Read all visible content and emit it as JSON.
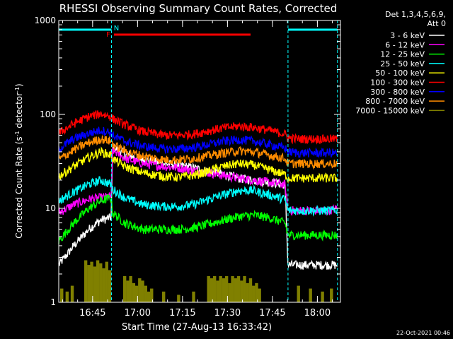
{
  "chart_data": {
    "type": "line",
    "title": "RHESSI Observing Summary Count Rates, Corrected",
    "ylabel_main": "Corrected Count Rate (s",
    "ylabel_sup1": "-1",
    "ylabel_mid": " detector",
    "ylabel_sup2": "-1",
    "ylabel_end": ")",
    "xlabel": "Start Time (27-Aug-13 16:33:42)",
    "y_scale": "log",
    "ylim": [
      1,
      1000
    ],
    "xlim_minutes_after_start": [
      0,
      94
    ],
    "x_ticks": [
      {
        "label": "16:45",
        "minutes": 11.3
      },
      {
        "label": "17:00",
        "minutes": 26.3
      },
      {
        "label": "17:15",
        "minutes": 41.3
      },
      {
        "label": "17:30",
        "minutes": 56.3
      },
      {
        "label": "17:45",
        "minutes": 71.3
      },
      {
        "label": "18:00",
        "minutes": 86.3
      }
    ],
    "y_ticks": [
      {
        "label": "1",
        "value": 1
      },
      {
        "label": "10",
        "value": 10
      },
      {
        "label": "100",
        "value": 100
      },
      {
        "label": "1000",
        "value": 1000
      }
    ],
    "legend_placement": "right",
    "legend_title_1": "Det 1,3,4,5,6,9,",
    "legend_title_2": "Att 0",
    "flags": [
      {
        "label": "N",
        "color": "#00ffff",
        "segments": [
          [
            -1,
            17.6
          ],
          [
            76.5,
            93
          ]
        ]
      },
      {
        "label": "F",
        "color": "#ff0000",
        "segments": [
          [
            18.4,
            64
          ]
        ]
      }
    ],
    "night_boundaries_minutes": [
      17.6,
      76.5,
      93
    ],
    "series": [
      {
        "name": "3 - 6 keV",
        "color": "#ffffff",
        "x": [
          0,
          5,
          10,
          14,
          17.5,
          18,
          22,
          28,
          35,
          40,
          45,
          50,
          55,
          60,
          65,
          70,
          75.5,
          76.5,
          80,
          85,
          90,
          93
        ],
        "y": [
          2.5,
          4,
          6,
          7.5,
          8,
          45,
          38,
          33,
          30,
          29,
          27,
          25,
          23,
          21,
          20,
          19,
          18,
          2.5,
          2.5,
          2.5,
          2.5,
          2.5
        ]
      },
      {
        "name": "6 - 12 keV",
        "color": "#ff00ff",
        "x": [
          0,
          5,
          10,
          14,
          17.5,
          18,
          22,
          28,
          35,
          40,
          45,
          50,
          55,
          60,
          65,
          70,
          75.5,
          76.5,
          80,
          85,
          90,
          93
        ],
        "y": [
          9,
          11,
          12.5,
          13,
          13.5,
          42,
          34,
          30,
          28,
          27,
          25.5,
          24,
          22.5,
          21,
          20,
          19,
          18,
          9.5,
          9.5,
          9.5,
          9.5,
          10
        ]
      },
      {
        "name": "12 - 25 keV",
        "color": "#00ff00",
        "x": [
          0,
          5,
          10,
          14,
          17.5,
          18,
          22,
          28,
          35,
          40,
          45,
          50,
          55,
          60,
          65,
          70,
          75.5,
          76.5,
          80,
          85,
          90,
          93
        ],
        "y": [
          4.5,
          7,
          10,
          12,
          13,
          9,
          7,
          6,
          6,
          6,
          6.2,
          6.8,
          7.5,
          8.2,
          8.5,
          8,
          7,
          5.2,
          5.2,
          5.2,
          5.2,
          5.2
        ]
      },
      {
        "name": "25 - 50 keV",
        "color": "#00ffff",
        "x": [
          0,
          5,
          10,
          14,
          17.5,
          18,
          22,
          28,
          35,
          40,
          45,
          50,
          55,
          60,
          65,
          70,
          75.5,
          76.5,
          80,
          85,
          90,
          93
        ],
        "y": [
          12,
          15,
          18,
          20,
          18,
          16,
          13,
          11,
          10.5,
          10.5,
          11,
          12.5,
          14,
          15.5,
          15.5,
          14,
          12.5,
          9.5,
          9.5,
          9.5,
          9.5,
          9.5
        ]
      },
      {
        "name": "50 - 100 keV",
        "color": "#ffff00",
        "x": [
          0,
          5,
          10,
          14,
          17.5,
          18,
          22,
          28,
          35,
          40,
          45,
          50,
          55,
          60,
          65,
          70,
          75.5,
          76.5,
          80,
          85,
          90,
          93
        ],
        "y": [
          22,
          28,
          35,
          40,
          37,
          34,
          28,
          24,
          22,
          21.5,
          22.5,
          25,
          28,
          30,
          29,
          26,
          23,
          21,
          21,
          21,
          21,
          21
        ]
      },
      {
        "name": "100 - 300 keV",
        "color": "#ff0000",
        "x": [
          0,
          5,
          10,
          14,
          17.5,
          18,
          22,
          28,
          35,
          40,
          45,
          50,
          55,
          60,
          65,
          70,
          75.5,
          76.5,
          80,
          85,
          90,
          93
        ],
        "y": [
          63,
          80,
          95,
          102,
          95,
          90,
          78,
          66,
          60,
          60,
          62,
          67,
          72,
          75,
          73,
          68,
          62,
          56,
          55,
          55,
          55,
          55
        ]
      },
      {
        "name": "300 - 800 keV",
        "color": "#0000ff",
        "x": [
          0,
          5,
          10,
          14,
          17.5,
          18,
          22,
          28,
          35,
          40,
          45,
          50,
          55,
          60,
          65,
          70,
          75.5,
          76.5,
          80,
          85,
          90,
          93
        ],
        "y": [
          43,
          55,
          63,
          68,
          64,
          60,
          52,
          46,
          43,
          43,
          44.5,
          48,
          52,
          54,
          52,
          48,
          44,
          40,
          39,
          39,
          39,
          39
        ]
      },
      {
        "name": "800 - 7000 keV",
        "color": "#ff8c00",
        "x": [
          0,
          5,
          10,
          14,
          17.5,
          18,
          22,
          28,
          35,
          40,
          45,
          50,
          55,
          60,
          65,
          70,
          75.5,
          76.5,
          80,
          85,
          90,
          93
        ],
        "y": [
          33,
          42,
          50,
          55,
          52,
          48,
          41,
          36,
          33,
          33,
          34,
          36.5,
          39,
          41,
          40,
          37,
          34,
          30,
          30,
          30,
          30,
          30
        ]
      },
      {
        "name": "7000 - 15000 keV",
        "color": "#808000",
        "bars": [
          [
            1,
            1.4
          ],
          [
            2.8,
            1.3
          ],
          [
            4.5,
            1.5
          ],
          [
            9,
            2.8
          ],
          [
            10,
            2.5
          ],
          [
            11,
            2.7
          ],
          [
            12,
            2.4
          ],
          [
            13,
            2.8
          ],
          [
            14,
            2.6
          ],
          [
            15,
            2.3
          ],
          [
            16,
            2.7
          ],
          [
            17,
            2.2
          ],
          [
            22,
            1.9
          ],
          [
            23,
            1.7
          ],
          [
            24,
            1.9
          ],
          [
            25,
            1.6
          ],
          [
            26,
            1.5
          ],
          [
            27,
            1.8
          ],
          [
            28,
            1.7
          ],
          [
            29,
            1.5
          ],
          [
            30,
            1.3
          ],
          [
            31,
            1.4
          ],
          [
            35,
            1.3
          ],
          [
            40,
            1.2
          ],
          [
            45,
            1.3
          ],
          [
            50,
            1.9
          ],
          [
            51,
            1.8
          ],
          [
            52,
            1.9
          ],
          [
            53,
            1.7
          ],
          [
            54,
            1.9
          ],
          [
            55,
            1.8
          ],
          [
            56,
            1.9
          ],
          [
            57,
            1.6
          ],
          [
            58,
            1.9
          ],
          [
            59,
            1.8
          ],
          [
            60,
            1.9
          ],
          [
            61,
            1.7
          ],
          [
            62,
            1.9
          ],
          [
            63,
            1.6
          ],
          [
            64,
            1.8
          ],
          [
            65,
            1.5
          ],
          [
            66,
            1.6
          ],
          [
            67,
            1.4
          ],
          [
            80,
            1.5
          ],
          [
            84,
            1.4
          ],
          [
            88,
            1.3
          ],
          [
            91,
            1.4
          ]
        ]
      }
    ],
    "footer_date": "22-Oct-2021 00:46"
  }
}
